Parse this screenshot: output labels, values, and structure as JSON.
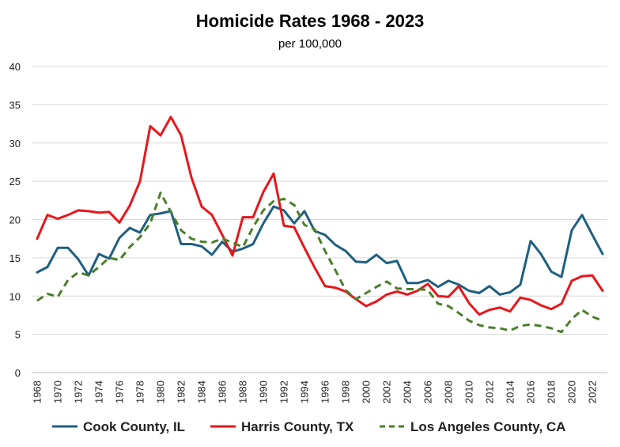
{
  "chart_data": {
    "type": "line",
    "title": "Homicide Rates 1968 - 2023",
    "subtitle": "per 100,000",
    "xlabel": "",
    "ylabel": "",
    "ylim": [
      0,
      40
    ],
    "yticks": [
      0,
      5,
      10,
      15,
      20,
      25,
      30,
      35,
      40
    ],
    "xlim": [
      1968,
      2023
    ],
    "xtick_labels": [
      "1968",
      "1970",
      "1972",
      "1974",
      "1976",
      "1978",
      "1980",
      "1982",
      "1984",
      "1986",
      "1988",
      "1990",
      "1992",
      "1994",
      "1996",
      "1998",
      "2000",
      "2002",
      "2004",
      "2006",
      "2008",
      "2010",
      "2012",
      "2014",
      "2016",
      "2018",
      "2020",
      "2022"
    ],
    "grid": true,
    "legend_position": "bottom",
    "x": [
      1968,
      1969,
      1970,
      1971,
      1972,
      1973,
      1974,
      1975,
      1976,
      1977,
      1978,
      1979,
      1980,
      1981,
      1982,
      1983,
      1984,
      1985,
      1986,
      1987,
      1988,
      1989,
      1990,
      1991,
      1992,
      1993,
      1994,
      1995,
      1996,
      1997,
      1998,
      1999,
      2000,
      2001,
      2002,
      2003,
      2004,
      2005,
      2006,
      2007,
      2008,
      2009,
      2010,
      2011,
      2012,
      2013,
      2014,
      2015,
      2016,
      2017,
      2018,
      2019,
      2020,
      2021,
      2022,
      2023
    ],
    "series": [
      {
        "name": "Cook County, IL",
        "color": "#1f5f7f",
        "dash": "solid",
        "values": [
          13.1,
          13.8,
          16.3,
          16.3,
          14.8,
          12.7,
          15.5,
          14.9,
          17.6,
          18.9,
          18.3,
          20.6,
          20.8,
          21.1,
          16.8,
          16.8,
          16.5,
          15.4,
          17.1,
          15.8,
          16.2,
          16.8,
          19.5,
          21.7,
          21.2,
          19.5,
          21.1,
          18.5,
          18.0,
          16.7,
          15.9,
          14.5,
          14.4,
          15.4,
          14.3,
          14.6,
          11.7,
          11.7,
          12.1,
          11.2,
          12.0,
          11.5,
          10.7,
          10.4,
          11.3,
          10.2,
          10.5,
          11.5,
          17.2,
          15.5,
          13.2,
          12.5,
          18.6,
          20.6,
          18.0,
          15.5
        ]
      },
      {
        "name": "Harris County, TX",
        "color": "#e8161b",
        "dash": "solid",
        "values": [
          17.5,
          20.6,
          20.1,
          20.6,
          21.2,
          21.1,
          20.9,
          21.0,
          19.6,
          21.8,
          25.0,
          32.2,
          31.0,
          33.4,
          31.0,
          25.5,
          21.7,
          20.6,
          18.0,
          15.3,
          20.3,
          20.3,
          23.6,
          26.0,
          19.2,
          19.0,
          16.3,
          13.7,
          11.3,
          11.1,
          10.6,
          9.6,
          8.7,
          9.3,
          10.2,
          10.6,
          10.2,
          10.7,
          11.6,
          10.0,
          9.9,
          11.3,
          9.1,
          7.6,
          8.2,
          8.5,
          8.0,
          9.8,
          9.5,
          8.8,
          8.3,
          9.0,
          12.0,
          12.6,
          12.7,
          10.7
        ]
      },
      {
        "name": "Los Angeles County, CA",
        "color": "#4a7f2a",
        "dash": "dashed",
        "values": [
          9.4,
          10.3,
          9.9,
          12.1,
          13.1,
          12.7,
          13.8,
          15.0,
          14.7,
          16.4,
          17.7,
          19.5,
          23.5,
          21.0,
          18.6,
          17.5,
          17.1,
          17.0,
          17.5,
          17.0,
          16.4,
          19.0,
          21.2,
          22.4,
          22.7,
          21.9,
          19.3,
          18.7,
          15.9,
          13.4,
          10.8,
          9.6,
          10.4,
          11.2,
          11.9,
          11.0,
          10.9,
          10.9,
          10.8,
          9.0,
          8.7,
          7.8,
          6.8,
          6.2,
          5.9,
          5.8,
          5.5,
          6.1,
          6.3,
          6.1,
          5.8,
          5.3,
          7.0,
          8.2,
          7.3,
          6.8
        ]
      }
    ]
  }
}
